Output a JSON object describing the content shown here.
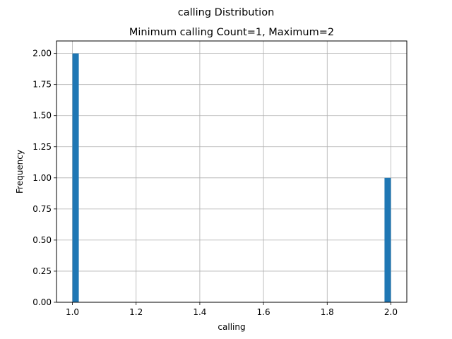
{
  "chart_data": {
    "type": "bar",
    "suptitle": "calling Distribution",
    "title": "Minimum calling Count=1, Maximum=2",
    "xlabel": "calling",
    "ylabel": "Frequency",
    "xlim": [
      0.95,
      2.05
    ],
    "ylim": [
      0,
      2.1
    ],
    "x_ticks": [
      "1.0",
      "1.2",
      "1.4",
      "1.6",
      "1.8",
      "2.0"
    ],
    "y_ticks": [
      "0.00",
      "0.25",
      "0.50",
      "0.75",
      "1.00",
      "1.25",
      "1.50",
      "1.75",
      "2.00"
    ],
    "bins": [
      {
        "start": 1.0,
        "end": 1.02,
        "value": 2
      },
      {
        "start": 1.98,
        "end": 2.0,
        "value": 1
      }
    ],
    "grid": true,
    "legend": "none",
    "bar_color": "#1f77b4"
  }
}
